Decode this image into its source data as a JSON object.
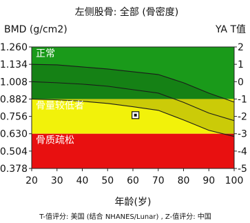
{
  "chart_data": {
    "type": "area",
    "title": "左侧股骨: 全部 (骨密度)",
    "ylabel": "BMD (g/cm2)",
    "y2label": "YA T值",
    "xlabel": "年龄(岁)",
    "footnote": "T-值评分: 美国 (结合 NHANES/Lunar) , Z-值评分: 中国",
    "x_ticks": [
      20,
      30,
      40,
      50,
      60,
      70,
      80,
      90,
      100
    ],
    "y_ticks": [
      "1.260",
      "1.134",
      "1.008",
      "0.882",
      "0.756",
      "0.630",
      "0.504",
      "0.378"
    ],
    "y_tick_values": [
      1.26,
      1.134,
      1.008,
      0.882,
      0.756,
      0.63,
      0.504,
      0.378
    ],
    "y2_ticks": [
      "2",
      "1",
      "0",
      "-1",
      "-2",
      "-3",
      "-4",
      "-5"
    ],
    "xlim": [
      20,
      100
    ],
    "ylim": [
      0.378,
      1.26
    ],
    "zones": [
      {
        "name": "正常",
        "from": 0.882,
        "to": 1.26,
        "color": "#1a9a1a"
      },
      {
        "name": "骨量较低者",
        "from": 0.63,
        "to": 0.882,
        "color": "#f2f20a"
      },
      {
        "name": "骨质疏松",
        "from": 0.378,
        "to": 0.63,
        "color": "#e81010"
      }
    ],
    "reference_curves": [
      {
        "role": "upper",
        "points": [
          [
            20,
            1.134
          ],
          [
            30,
            1.13
          ],
          [
            40,
            1.115
          ],
          [
            50,
            1.1
          ],
          [
            60,
            1.08
          ],
          [
            70,
            1.06
          ],
          [
            80,
            1.0
          ],
          [
            90,
            0.925
          ],
          [
            100,
            0.86
          ]
        ]
      },
      {
        "role": "mean",
        "points": [
          [
            20,
            1.008
          ],
          [
            30,
            1.0
          ],
          [
            40,
            0.99
          ],
          [
            50,
            0.975
          ],
          [
            60,
            0.95
          ],
          [
            70,
            0.925
          ],
          [
            80,
            0.858
          ],
          [
            90,
            0.78
          ],
          [
            100,
            0.725
          ]
        ]
      },
      {
        "role": "lower",
        "points": [
          [
            20,
            0.882
          ],
          [
            30,
            0.876
          ],
          [
            40,
            0.866
          ],
          [
            50,
            0.85
          ],
          [
            60,
            0.826
          ],
          [
            70,
            0.8
          ],
          [
            80,
            0.73
          ],
          [
            90,
            0.655
          ],
          [
            100,
            0.61
          ]
        ]
      }
    ],
    "patient_point": {
      "x": 61,
      "y": 0.765
    },
    "grid": false
  }
}
